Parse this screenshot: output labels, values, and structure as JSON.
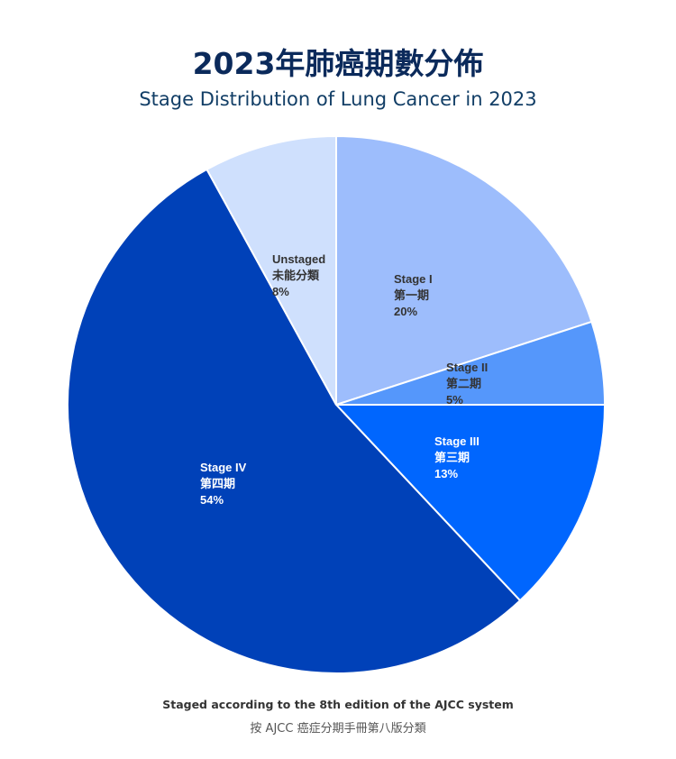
{
  "title": "2023年肺癌期數分佈",
  "subtitle": "Stage Distribution of Lung Cancer in 2023",
  "footnote": {
    "en": "Staged according to the 8th edition of the AJCC system",
    "zh": "按 AJCC 癌症分期手冊第八版分類"
  },
  "chart_data": {
    "type": "pie",
    "title": "2023年肺癌期數分佈",
    "subtitle": "Stage Distribution of Lung Cancer in 2023",
    "start_angle": "12 o'clock",
    "direction": "clockwise",
    "legend": "none",
    "slices": [
      {
        "name_en": "Stage I",
        "name_zh": "第一期",
        "value": 20,
        "value_label": "20%",
        "color": "#9dbdfc",
        "label_color": "#333333"
      },
      {
        "name_en": "Stage II",
        "name_zh": "第二期",
        "value": 5,
        "value_label": "5%",
        "color": "#5597fb",
        "label_color": "#333333"
      },
      {
        "name_en": "Stage III",
        "name_zh": "第三期",
        "value": 13,
        "value_label": "13%",
        "color": "#0066fe",
        "label_color": "#ffffff"
      },
      {
        "name_en": "Stage IV",
        "name_zh": "第四期",
        "value": 54,
        "value_label": "54%",
        "color": "#0041b8",
        "label_color": "#ffffff"
      },
      {
        "name_en": "Unstaged",
        "name_zh": "未能分類",
        "value": 8,
        "value_label": "8%",
        "color": "#cfe0fd",
        "label_color": "#333333"
      }
    ]
  }
}
